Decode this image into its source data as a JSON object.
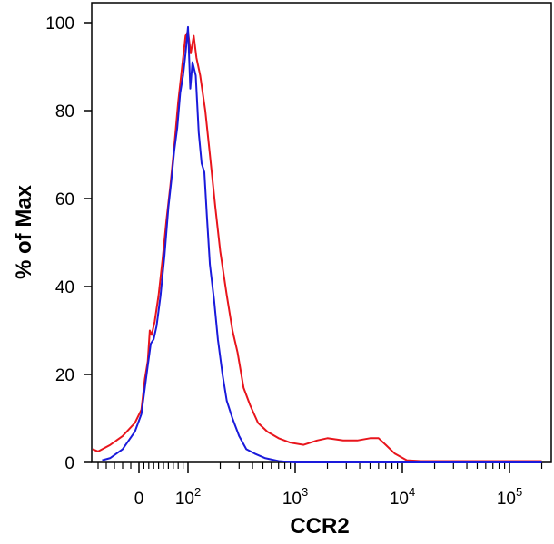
{
  "chart_data": {
    "type": "line",
    "xlabel": "CCR2",
    "ylabel": "% of Max",
    "x_scale": "biexponential",
    "ylim": [
      0,
      100
    ],
    "y_ticks": [
      {
        "label": "0",
        "value": 0
      },
      {
        "label": "20",
        "value": 20
      },
      {
        "label": "40",
        "value": 40
      },
      {
        "label": "60",
        "value": 60
      },
      {
        "label": "80",
        "value": 80
      },
      {
        "label": "100",
        "value": 100
      }
    ],
    "x_ticks": [
      {
        "label": "0",
        "sup": "",
        "value": 0
      },
      {
        "label": "10",
        "sup": "2",
        "value": 100
      },
      {
        "label": "10",
        "sup": "3",
        "value": 1000
      },
      {
        "label": "10",
        "sup": "4",
        "value": 10000
      },
      {
        "label": "10",
        "sup": "5",
        "value": 100000
      }
    ],
    "series": [
      {
        "color": "#e8151c",
        "points": [
          [
            -60,
            3
          ],
          [
            -50,
            2.5
          ],
          [
            -35,
            4
          ],
          [
            -20,
            6
          ],
          [
            -5,
            9
          ],
          [
            5,
            12
          ],
          [
            12,
            19
          ],
          [
            18,
            23
          ],
          [
            22,
            30
          ],
          [
            26,
            29
          ],
          [
            32,
            32
          ],
          [
            40,
            38
          ],
          [
            48,
            46
          ],
          [
            56,
            55
          ],
          [
            64,
            63
          ],
          [
            72,
            72
          ],
          [
            80,
            82
          ],
          [
            88,
            90
          ],
          [
            95,
            97
          ],
          [
            100,
            98
          ],
          [
            106,
            93
          ],
          [
            113,
            97
          ],
          [
            120,
            92
          ],
          [
            130,
            88
          ],
          [
            145,
            80
          ],
          [
            160,
            70
          ],
          [
            180,
            58
          ],
          [
            200,
            48
          ],
          [
            230,
            38
          ],
          [
            260,
            30
          ],
          [
            290,
            25
          ],
          [
            330,
            17
          ],
          [
            380,
            13
          ],
          [
            450,
            9
          ],
          [
            550,
            7
          ],
          [
            700,
            5.5
          ],
          [
            900,
            4.5
          ],
          [
            1200,
            4
          ],
          [
            1600,
            5
          ],
          [
            2000,
            5.5
          ],
          [
            2800,
            5
          ],
          [
            3800,
            5
          ],
          [
            5000,
            5.5
          ],
          [
            6000,
            5.5
          ],
          [
            7000,
            4
          ],
          [
            8500,
            2
          ],
          [
            11000,
            0.5
          ],
          [
            15000,
            0.3
          ],
          [
            40000,
            0.3
          ],
          [
            100000,
            0.3
          ],
          [
            200000,
            0.3
          ]
        ]
      },
      {
        "color": "#1a1adb",
        "points": [
          [
            -45,
            0.5
          ],
          [
            -35,
            1
          ],
          [
            -20,
            3
          ],
          [
            -5,
            7
          ],
          [
            5,
            11
          ],
          [
            12,
            17
          ],
          [
            18,
            22
          ],
          [
            24,
            27
          ],
          [
            30,
            28
          ],
          [
            36,
            31
          ],
          [
            44,
            38
          ],
          [
            52,
            47
          ],
          [
            60,
            58
          ],
          [
            66,
            64
          ],
          [
            72,
            71
          ],
          [
            78,
            76
          ],
          [
            84,
            84
          ],
          [
            90,
            88
          ],
          [
            95,
            93
          ],
          [
            100,
            99
          ],
          [
            105,
            85
          ],
          [
            110,
            91
          ],
          [
            118,
            88
          ],
          [
            126,
            75
          ],
          [
            134,
            68
          ],
          [
            142,
            66
          ],
          [
            150,
            56
          ],
          [
            160,
            45
          ],
          [
            175,
            37
          ],
          [
            190,
            28
          ],
          [
            210,
            20
          ],
          [
            230,
            14
          ],
          [
            260,
            10
          ],
          [
            300,
            6
          ],
          [
            350,
            3
          ],
          [
            420,
            2
          ],
          [
            520,
            1
          ],
          [
            700,
            0.3
          ],
          [
            1000,
            0
          ],
          [
            3000,
            0
          ],
          [
            100000,
            0
          ],
          [
            200000,
            0
          ]
        ]
      }
    ]
  }
}
